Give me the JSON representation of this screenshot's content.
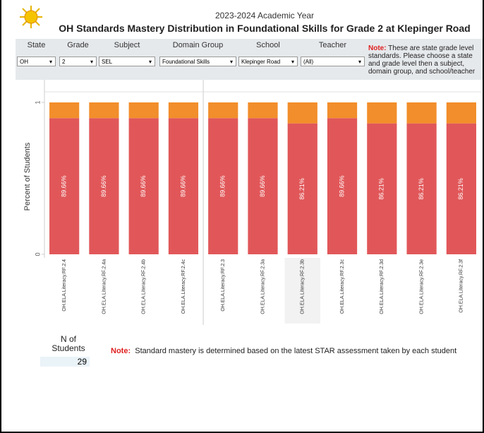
{
  "header": {
    "subtitle": "2023-2024 Academic Year",
    "title": "OH Standards Mastery Distribution in Foundational Skills for Grade 2 at Klepinger Road"
  },
  "filters": [
    {
      "label": "State",
      "value": "OH"
    },
    {
      "label": "Grade",
      "value": "2"
    },
    {
      "label": "Subject",
      "value": "SEL"
    },
    {
      "label": "Domain Group",
      "value": "Foundational Skills"
    },
    {
      "label": "School",
      "value": "Klepinger Road"
    },
    {
      "label": "Teacher",
      "value": "(All)"
    }
  ],
  "filter_note": {
    "label": "Note:",
    "text": "These are state grade level standards. Please choose a state and grade level then a subject, domain group, and school/teacher"
  },
  "chart_data": {
    "type": "stacked_bar",
    "y_label": "Percent of Students",
    "categories": [
      "OH.ELA.Literacy.RF.2.4",
      "OH.ELA.Literacy.RF.2.4a",
      "OH.ELA.Literacy.RF.2.4b",
      "OH.ELA.Literacy.RF.2.4c",
      "OH.ELA.Literacy.RF.2.3",
      "OH.ELA.Literacy.RF.2.3a",
      "OH.ELA.Literacy.RF.2.3b",
      "OH.ELA.Literacy.RF.2.3c",
      "OH.ELA.Literacy.RF.2.3d",
      "OH.ELA.Literacy.RF.2.3e",
      "OH.ELA.Literacy.RF.2.3f"
    ],
    "series": [
      {
        "color": "#e15759",
        "values": [
          0.8966,
          0.8966,
          0.8966,
          0.8966,
          0.8966,
          0.8966,
          0.8621,
          0.8966,
          0.8621,
          0.8621,
          0.8621
        ],
        "value_labels": [
          "89.66%",
          "89.66%",
          "89.66%",
          "89.66%",
          "89.66%",
          "89.66%",
          "86.21%",
          "89.66%",
          "86.21%",
          "86.21%",
          "86.21%"
        ]
      },
      {
        "color": "#f28e2b",
        "values": [
          0.1034,
          0.1034,
          0.1034,
          0.1034,
          0.1034,
          0.1034,
          0.1379,
          0.1034,
          0.1379,
          0.1379,
          0.1379
        ]
      }
    ],
    "ylim": [
      0,
      1
    ],
    "yticks": [
      0,
      1
    ]
  },
  "n_students": {
    "label": "N of Students",
    "value": 29
  },
  "footer_note": {
    "label": "Note:",
    "text": "Standard mastery is determined based on the latest STAR assessment taken by each student"
  }
}
